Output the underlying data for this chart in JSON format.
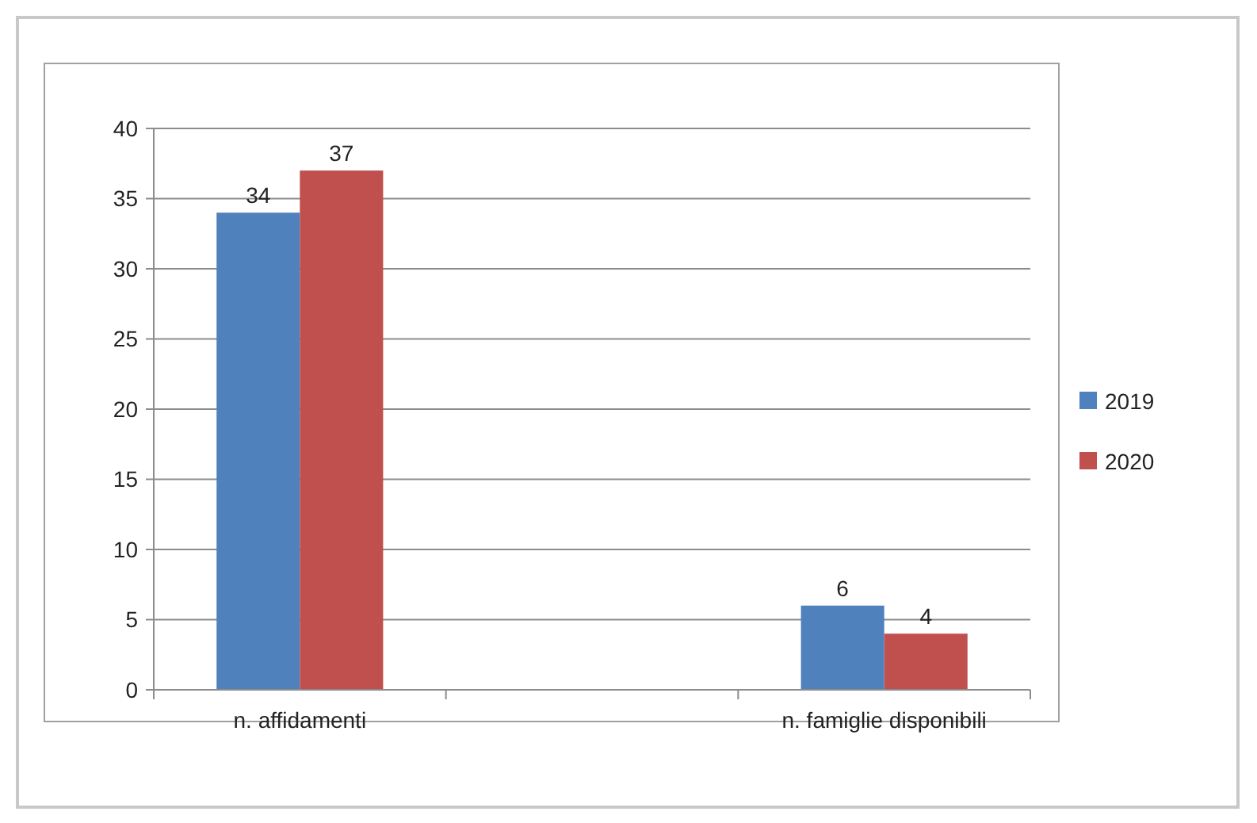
{
  "chart_data": {
    "type": "bar",
    "categories": [
      "n. affidamenti",
      null,
      "n. famiglie disponibili"
    ],
    "series": [
      {
        "name": "2019",
        "color": "#4f81bd",
        "values": [
          34,
          null,
          6
        ]
      },
      {
        "name": "2020",
        "color": "#c0504d",
        "values": [
          37,
          null,
          4
        ]
      }
    ],
    "ylim": [
      0,
      40
    ],
    "yticks": [
      0,
      5,
      10,
      15,
      20,
      25,
      30,
      35,
      40
    ],
    "grid": "y",
    "legend": "right",
    "data_labels": true
  }
}
